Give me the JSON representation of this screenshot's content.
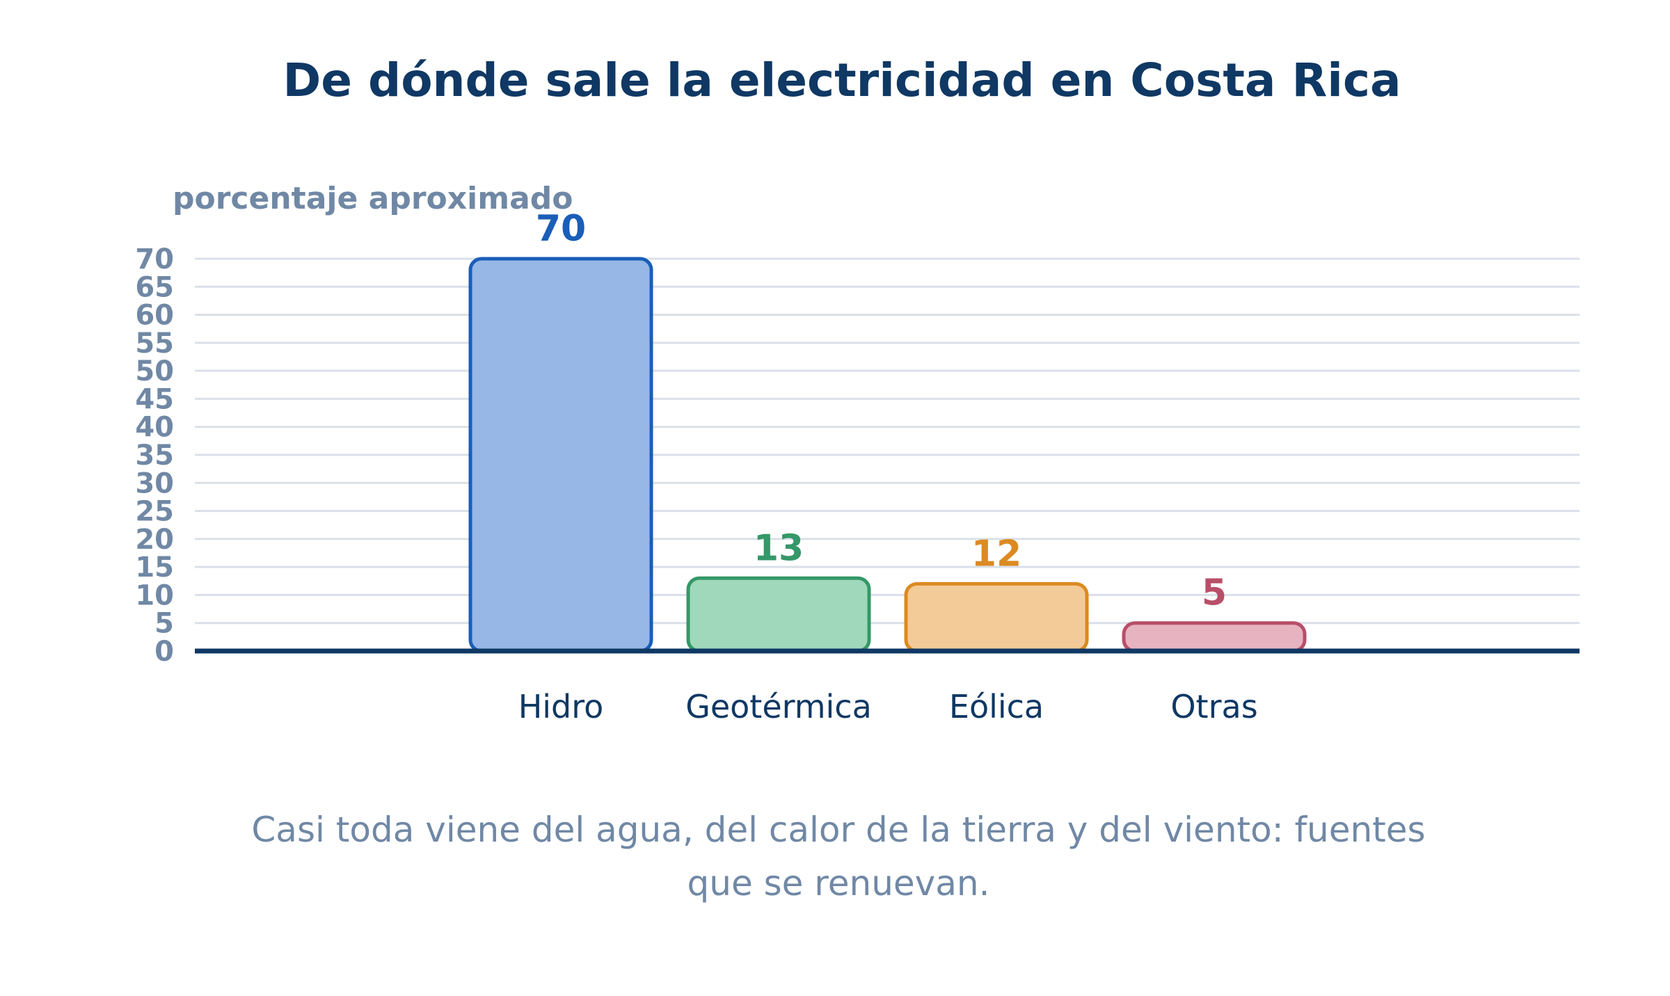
{
  "chart_data": {
    "type": "bar",
    "title": "De dónde sale la electricidad en Costa Rica",
    "ylabel": "porcentaje aproximado",
    "xlabel": "",
    "ylim": [
      0,
      70
    ],
    "ytick_step": 5,
    "yticks": [
      "0",
      "5",
      "10",
      "15",
      "20",
      "25",
      "30",
      "35",
      "40",
      "45",
      "50",
      "55",
      "60",
      "65",
      "70"
    ],
    "grid": true,
    "categories": [
      "Hidro",
      "Geotérmica",
      "Eólica",
      "Otras"
    ],
    "values": [
      70,
      13,
      12,
      5
    ],
    "value_labels": [
      "70",
      "13",
      "12",
      "5"
    ],
    "colors": {
      "fill": [
        "#97b8e6",
        "#a0d8bb",
        "#f3cb98",
        "#e7b3c1"
      ],
      "stroke": [
        "#1a5eb8",
        "#349868",
        "#dc8a22",
        "#b84f6a"
      ],
      "title": "#0f3864",
      "axis": "#0f3864",
      "tick": "#7088a5",
      "grid": "#d9e0e8",
      "caption": "#7088a5"
    }
  },
  "caption": {
    "line1": "Casi toda viene del agua, del calor de la tierra y del viento: fuentes",
    "line2": "que se renuevan."
  }
}
